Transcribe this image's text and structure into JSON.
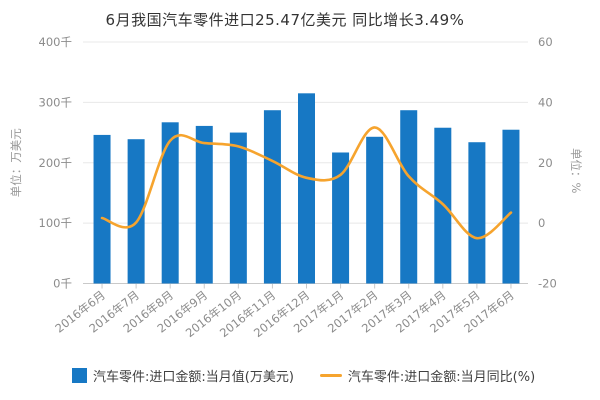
{
  "title": "6月我国汽车零件进口25.47亿美元 同比增长3.49%",
  "colors": {
    "bar": "#1778c4",
    "line": "#f6a42e",
    "grid": "#e8e8e8",
    "axis": "#c9c9c9",
    "tick_label": "#8c8c8c",
    "axis_name": "#999999",
    "title_text": "#333333",
    "legend_text": "#404040",
    "background": "#ffffff"
  },
  "chart_data": {
    "type": "bar+line combo",
    "title": "6月我国汽车零件进口25.47亿美元 同比增长3.49%",
    "categories": [
      "2016年6月",
      "2016年7月",
      "2016年8月",
      "2016年9月",
      "2016年10月",
      "2016年11月",
      "2016年12月",
      "2017年1月",
      "2017年2月",
      "2017年3月",
      "2017年4月",
      "2017年5月",
      "2017年6月"
    ],
    "series": [
      {
        "name": "汽车零件:进口金额:当月值(万美元)",
        "type": "bar",
        "axis": "left",
        "values": [
          246100,
          239000,
          267000,
          261000,
          250000,
          287000,
          315000,
          217000,
          243000,
          287000,
          258000,
          234000,
          254700
        ]
      },
      {
        "name": "汽车零件:进口金额:当月同比(%)",
        "type": "line",
        "smooth": true,
        "axis": "right",
        "values": [
          1.7,
          0.2,
          27.3,
          26.5,
          25.4,
          20.6,
          15.0,
          16.0,
          31.7,
          15.5,
          6.3,
          -5.0,
          3.49
        ]
      }
    ],
    "left_axis": {
      "name": "单位：万美元",
      "min": 0,
      "max": 400000,
      "interval": 100000,
      "tick_labels": [
        "0千",
        "100千",
        "200千",
        "300千",
        "400千"
      ]
    },
    "right_axis": {
      "name": "单位：%",
      "min": -20,
      "max": 60,
      "interval": 20,
      "tick_labels": [
        "-20",
        "0",
        "20",
        "40",
        "60"
      ]
    },
    "grid": true,
    "legend_position": "bottom"
  },
  "legend": {
    "bar_label": "汽车零件:进口金额:当月值(万美元)",
    "line_label": "汽车零件:进口金额:当月同比(%)"
  }
}
